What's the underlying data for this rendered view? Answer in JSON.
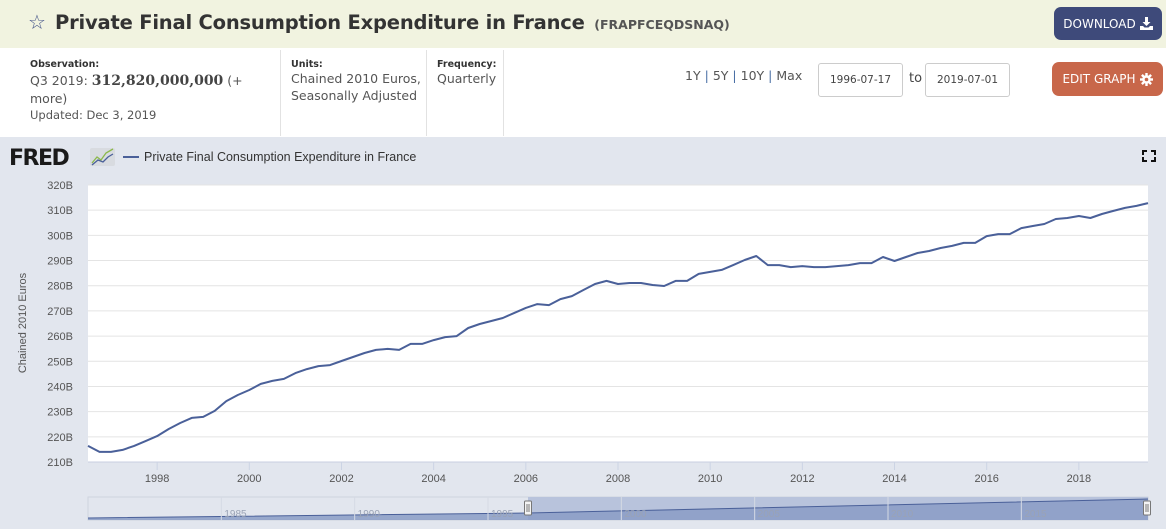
{
  "header": {
    "title": "Private Final Consumption Expenditure in France",
    "series_id": "(FRAPFCEQDSNAQ)",
    "download_label": "DOWNLOAD",
    "star_icon": "star-outline-icon",
    "download_icon": "download-icon"
  },
  "meta": {
    "observation_label": "Observation:",
    "observation_period": "Q3 2019:",
    "observation_value": "312,820,000,000",
    "observation_more": "(+ more)",
    "updated": "Updated: Dec 3, 2019",
    "units_label": "Units:",
    "units_line1": "Chained 2010 Euros,",
    "units_line2": "Seasonally Adjusted",
    "frequency_label": "Frequency:",
    "frequency_value": "Quarterly"
  },
  "controls": {
    "ranges": [
      "1Y",
      "5Y",
      "10Y",
      "Max"
    ],
    "start_date": "1996-07-17",
    "to_label": "to",
    "end_date": "2019-07-01",
    "edit_graph_label": "EDIT GRAPH",
    "edit_icon": "gear-icon",
    "fullscreen_icon": "fullscreen-icon"
  },
  "brand": {
    "logo_text": "FRED",
    "line_color": "#4a6099"
  },
  "navigator": {
    "labels": [
      "1985",
      "1990",
      "1995",
      "2000",
      "2005",
      "2010",
      "2015"
    ]
  },
  "chart_data": {
    "type": "line",
    "title": "",
    "legend": [
      "Private Final Consumption Expenditure in France"
    ],
    "legend_position": "top-left",
    "xlabel": "",
    "ylabel": "Chained 2010 Euros",
    "ylim": [
      210,
      320
    ],
    "y_unit": "B",
    "yticks": [
      "210B",
      "220B",
      "230B",
      "240B",
      "250B",
      "260B",
      "270B",
      "280B",
      "290B",
      "300B",
      "310B",
      "320B"
    ],
    "xticks": [
      "1998",
      "2000",
      "2002",
      "2004",
      "2006",
      "2008",
      "2010",
      "2012",
      "2014",
      "2016",
      "2018"
    ],
    "x_start": 1996.5,
    "x_step": 0.25,
    "grid": true,
    "series": [
      {
        "name": "Private Final Consumption Expenditure in France",
        "color": "#4a6099",
        "values": [
          216.4,
          214.0,
          214.0,
          214.8,
          216.4,
          218.3,
          220.3,
          223.1,
          225.5,
          227.5,
          227.9,
          230.3,
          234.2,
          236.6,
          238.6,
          241.0,
          242.2,
          243.0,
          245.3,
          246.9,
          248.1,
          248.5,
          250.1,
          251.7,
          253.3,
          254.5,
          254.9,
          254.5,
          256.9,
          256.9,
          258.4,
          259.6,
          260.0,
          263.2,
          264.8,
          266.0,
          267.2,
          269.2,
          271.2,
          272.7,
          272.3,
          274.7,
          275.9,
          278.3,
          280.7,
          281.9,
          280.7,
          281.1,
          281.1,
          280.3,
          279.9,
          281.9,
          281.9,
          284.7,
          285.5,
          286.3,
          288.2,
          290.2,
          291.8,
          288.2,
          288.2,
          287.4,
          287.8,
          287.4,
          287.4,
          287.8,
          288.2,
          289.0,
          289.0,
          291.4,
          289.8,
          291.4,
          293.0,
          293.8,
          295.0,
          295.8,
          297.0,
          297.0,
          299.7,
          300.5,
          300.5,
          302.9,
          303.7,
          304.5,
          306.5,
          306.9,
          307.7,
          306.9,
          308.5,
          309.7,
          310.9,
          311.7,
          312.8
        ]
      }
    ]
  }
}
